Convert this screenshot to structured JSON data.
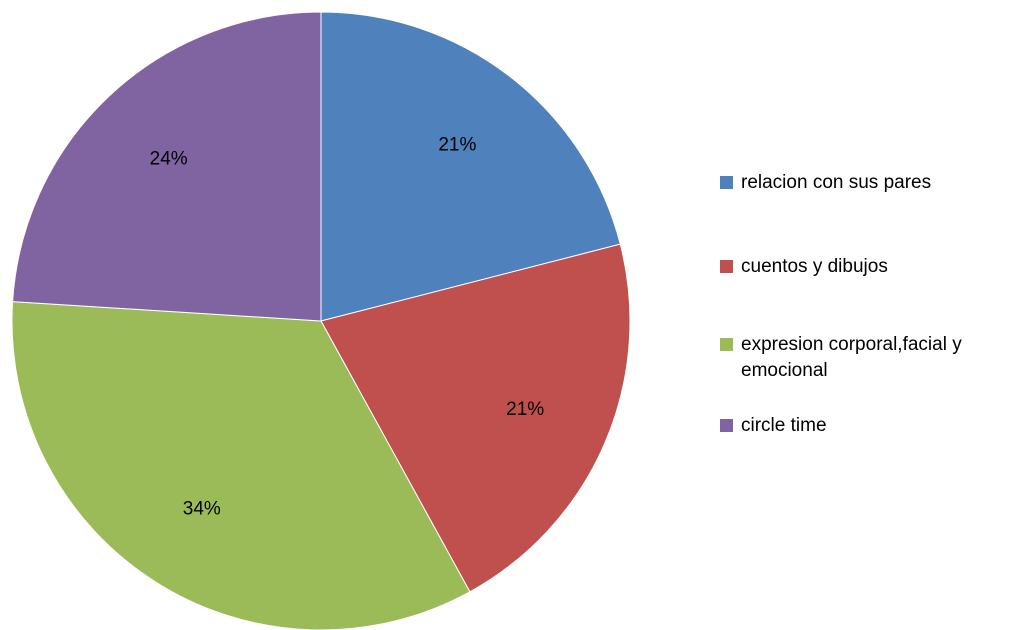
{
  "chart_data": {
    "type": "pie",
    "title": "",
    "categories": [
      "relacion con sus pares",
      "cuentos y dibujos",
      "expresion corporal,facial y emocional",
      "circle time"
    ],
    "values": [
      21,
      21,
      34,
      24
    ],
    "value_labels": [
      "21%",
      "21%",
      "34%",
      "24%"
    ],
    "colors": [
      "#4f81bd",
      "#c0504d",
      "#9bbb59",
      "#8064a2"
    ],
    "legend_position": "right",
    "start_angle": "12 o'clock",
    "direction": "clockwise"
  }
}
